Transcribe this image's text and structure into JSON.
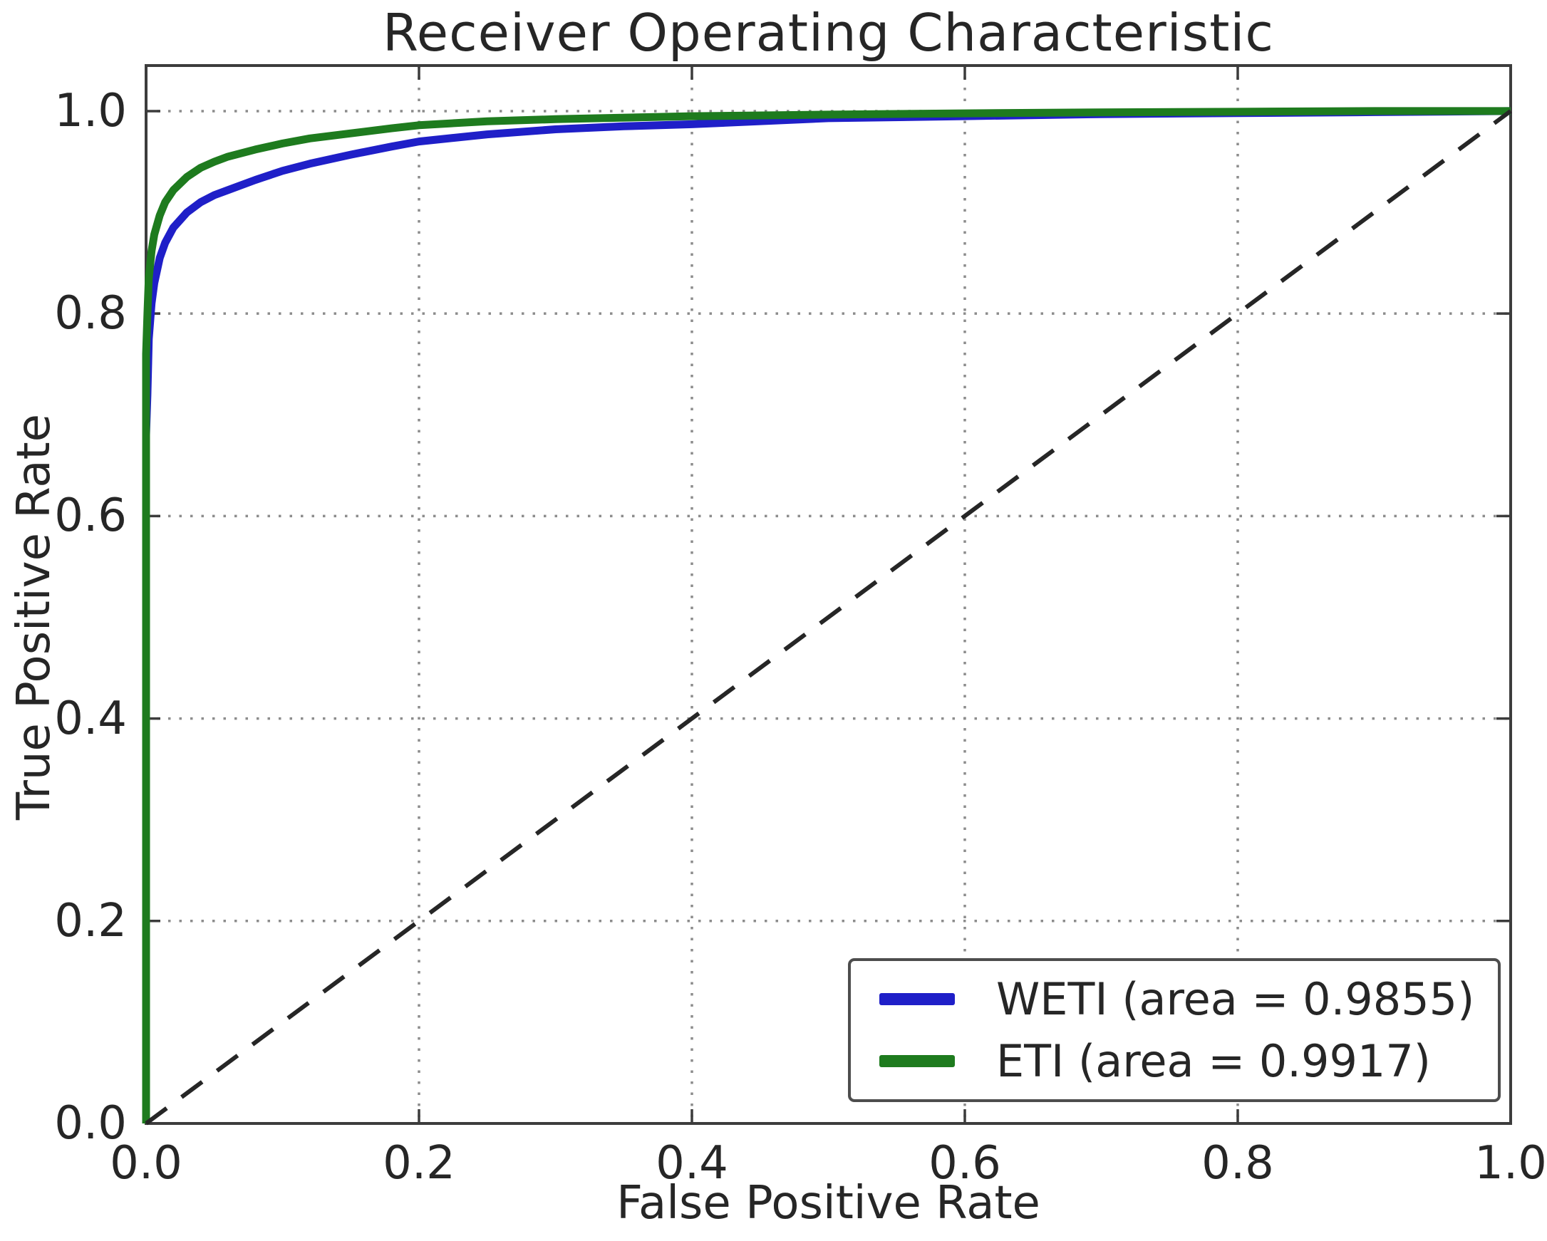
{
  "chart_data": {
    "type": "line",
    "title": "Receiver Operating Characteristic",
    "xlabel": "False Positive Rate",
    "ylabel": "True Positive Rate",
    "xlim": [
      0.0,
      1.0
    ],
    "ylim": [
      0.0,
      1.045
    ],
    "xticks": [
      "0.0",
      "0.2",
      "0.4",
      "0.6",
      "0.8",
      "1.0"
    ],
    "yticks": [
      "0.0",
      "0.2",
      "0.4",
      "0.6",
      "0.8",
      "1.0"
    ],
    "grid": true,
    "grid_style": "dotted",
    "legend_position": "lower right",
    "colors": {
      "weti": "#1f1fc8",
      "eti": "#1e7b1e",
      "diagonal": "#262626",
      "grid": "#8c8c8c",
      "spine": "#3c3c3c",
      "text": "#262626"
    },
    "series": [
      {
        "name": "WETI (area = 0.9855)",
        "auc": 0.9855,
        "color": "#1f1fc8",
        "style": "solid",
        "in_legend": true,
        "x": [
          0,
          0,
          0.001,
          0.002,
          0.004,
          0.006,
          0.01,
          0.014,
          0.02,
          0.03,
          0.04,
          0.05,
          0.06,
          0.08,
          0.1,
          0.12,
          0.15,
          0.18,
          0.2,
          0.25,
          0.3,
          0.35,
          0.4,
          0.5,
          0.6,
          0.7,
          0.8,
          0.9,
          1.0
        ],
        "y": [
          0,
          0.68,
          0.72,
          0.775,
          0.81,
          0.83,
          0.855,
          0.87,
          0.885,
          0.9,
          0.91,
          0.917,
          0.922,
          0.932,
          0.941,
          0.948,
          0.957,
          0.965,
          0.97,
          0.977,
          0.982,
          0.985,
          0.987,
          0.993,
          0.995,
          0.997,
          0.998,
          0.999,
          1.0
        ]
      },
      {
        "name": "ETI (area = 0.9917)",
        "auc": 0.9917,
        "color": "#1e7b1e",
        "style": "solid",
        "in_legend": true,
        "x": [
          0,
          0,
          0.001,
          0.002,
          0.004,
          0.006,
          0.01,
          0.014,
          0.02,
          0.03,
          0.04,
          0.05,
          0.06,
          0.08,
          0.1,
          0.12,
          0.15,
          0.18,
          0.2,
          0.25,
          0.3,
          0.4,
          0.5,
          0.6,
          0.7,
          0.8,
          0.9,
          1.0
        ],
        "y": [
          0,
          0.76,
          0.8,
          0.835,
          0.862,
          0.878,
          0.897,
          0.91,
          0.922,
          0.935,
          0.944,
          0.95,
          0.955,
          0.962,
          0.968,
          0.973,
          0.978,
          0.983,
          0.986,
          0.99,
          0.992,
          0.995,
          0.9965,
          0.9978,
          0.9988,
          0.9993,
          1.0,
          1.0
        ]
      },
      {
        "name": "chance-diagonal",
        "color": "#262626",
        "style": "dashed",
        "in_legend": false,
        "x": [
          0,
          1
        ],
        "y": [
          0,
          1
        ]
      }
    ]
  }
}
